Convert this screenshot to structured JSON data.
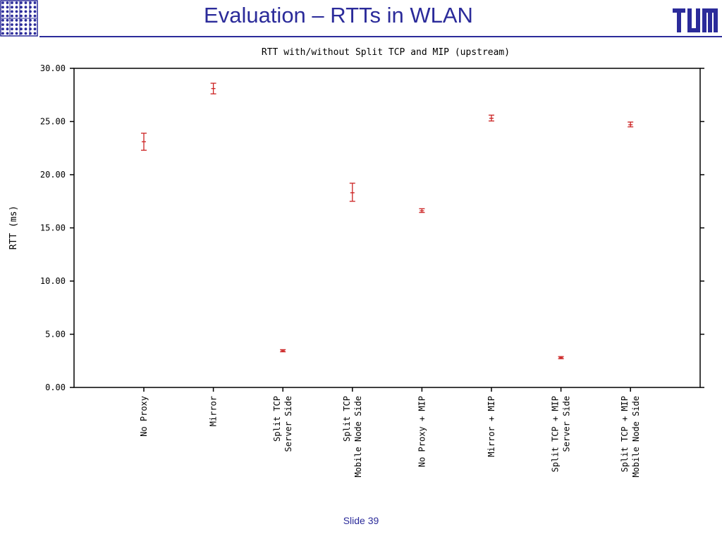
{
  "slide": {
    "title": "Evaluation – RTTs in WLAN",
    "footer": "Slide 39"
  },
  "icons": {
    "left_logo": "dot-grid-logo-icon",
    "right_logo": "tum-logo-icon"
  },
  "colors": {
    "accent": "#2b2b9a",
    "data": "#cc2222",
    "axis": "#000000"
  },
  "chart_data": {
    "type": "scatter",
    "title": "RTT with/without Split TCP and MIP (upstream)",
    "ylabel": "RTT (ms)",
    "ylim": [
      0,
      30
    ],
    "yticks": [
      "0.00",
      "5.00",
      "10.00",
      "15.00",
      "20.00",
      "25.00",
      "30.00"
    ],
    "categories": [
      [
        "No Proxy"
      ],
      [
        "Mirror"
      ],
      [
        "Split TCP",
        "Server Side"
      ],
      [
        "Split TCP",
        "Mobile Node Side"
      ],
      [
        "No Proxy + MIP"
      ],
      [
        "Mirror + MIP"
      ],
      [
        "Split TCP + MIP",
        "Server Side"
      ],
      [
        "Split TCP + MIP",
        "Mobile Node Side"
      ]
    ],
    "series": [
      {
        "values": [
          23.1,
          28.1,
          3.45,
          18.3,
          16.6,
          25.3,
          2.8,
          24.7
        ],
        "err_low": [
          22.3,
          27.6,
          3.35,
          17.5,
          16.45,
          25.05,
          2.7,
          24.5
        ],
        "err_high": [
          23.9,
          28.6,
          3.55,
          19.2,
          16.8,
          25.6,
          2.9,
          24.95
        ]
      }
    ],
    "grid": false,
    "legend": "none"
  }
}
